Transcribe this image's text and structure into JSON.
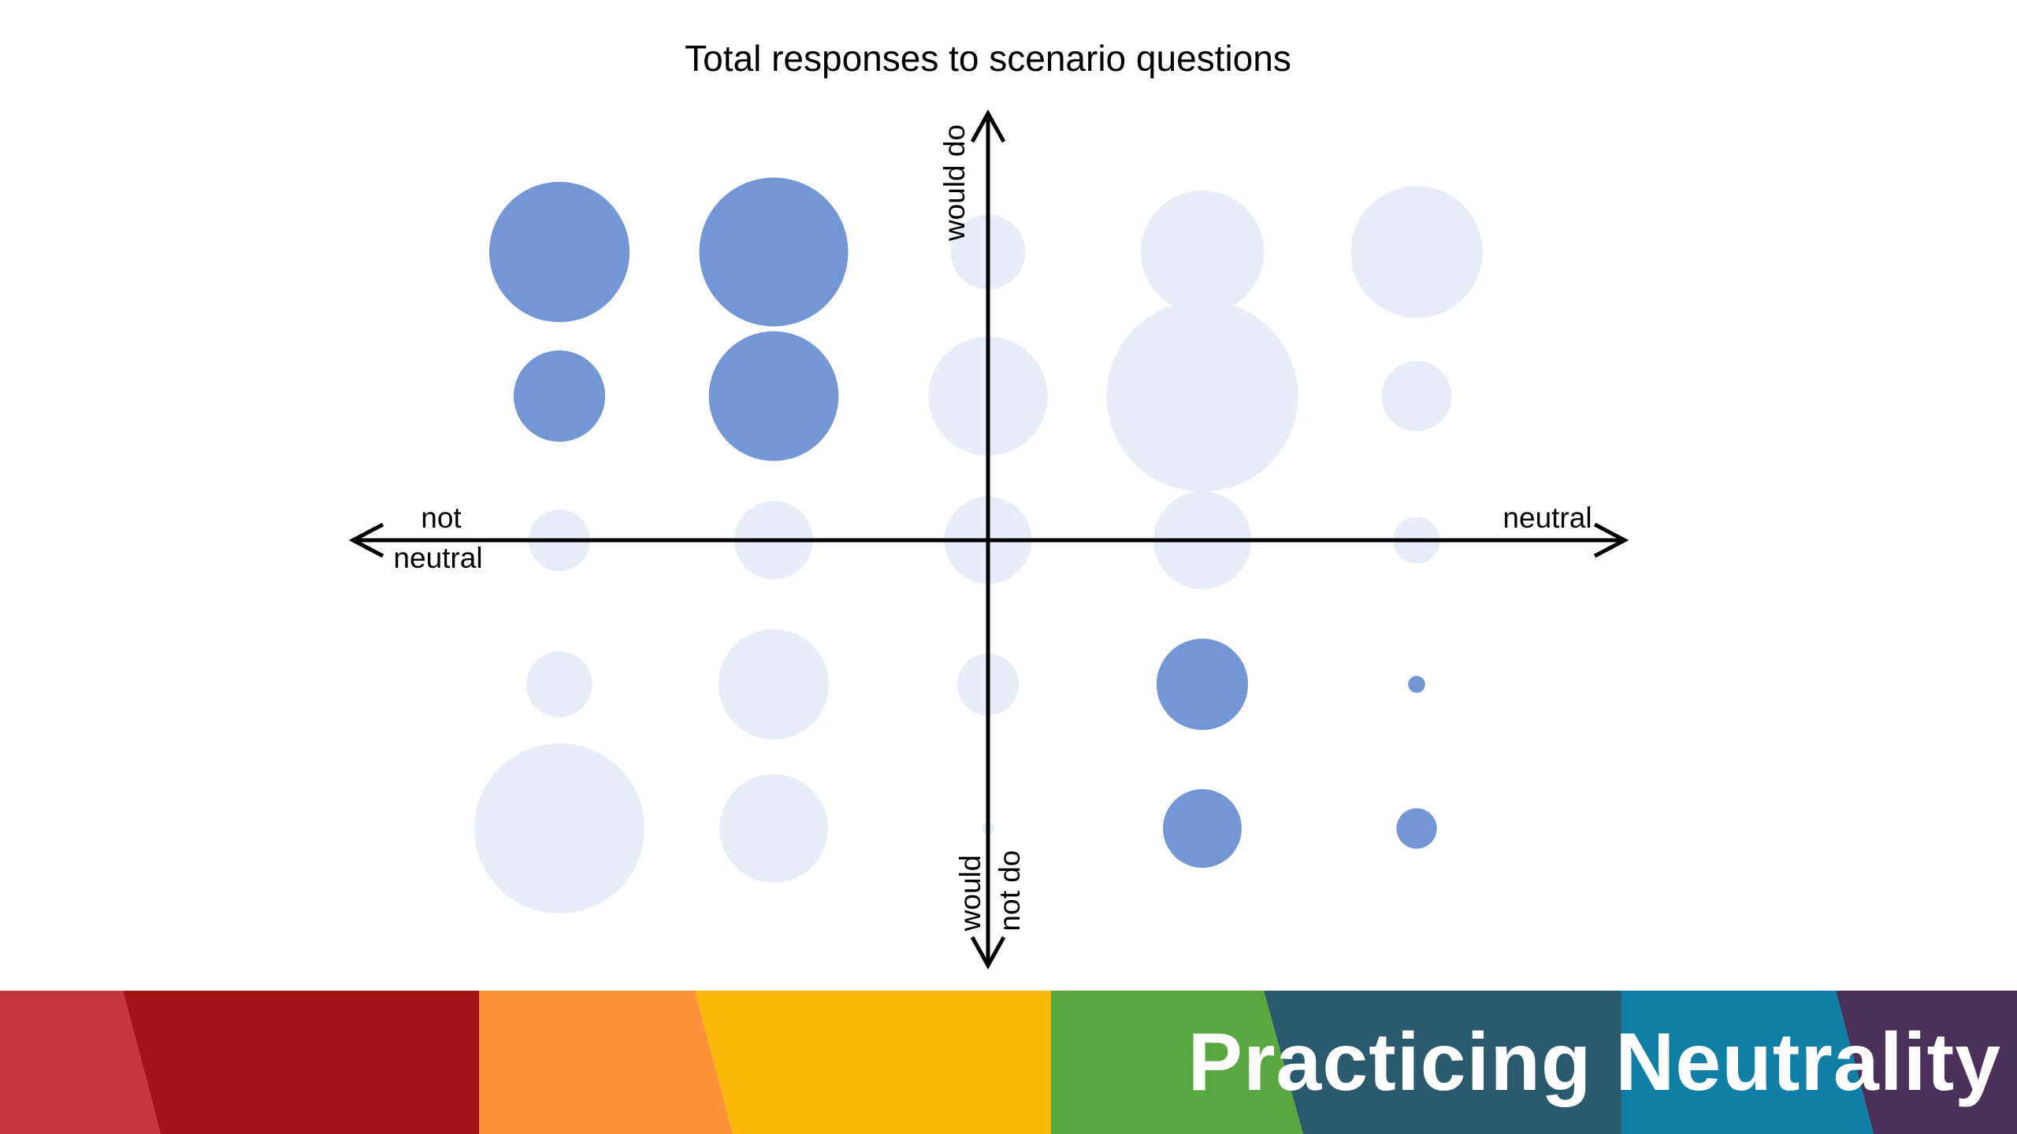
{
  "chart_data": {
    "type": "bubble",
    "title": "Total responses to scenario questions",
    "x_axis": {
      "negative_label": [
        "not",
        "neutral"
      ],
      "positive_label": "neutral"
    },
    "y_axis": {
      "positive_label": "would do",
      "negative_label": [
        "would",
        "not do"
      ]
    },
    "xlim": [
      -2,
      2
    ],
    "ylim": [
      -2,
      2
    ],
    "series": [
      {
        "highlight": true,
        "color": "#7396d4",
        "points": [
          {
            "x": -2,
            "y": 2,
            "size": 66
          },
          {
            "x": -1,
            "y": 2,
            "size": 70
          },
          {
            "x": -2,
            "y": 1,
            "size": 43
          },
          {
            "x": -1,
            "y": 1,
            "size": 61
          },
          {
            "x": 1,
            "y": -1,
            "size": 43
          },
          {
            "x": 2,
            "y": -1,
            "size": 8
          },
          {
            "x": 1,
            "y": -2,
            "size": 37
          },
          {
            "x": 2,
            "y": -2,
            "size": 19
          }
        ]
      },
      {
        "highlight": false,
        "color": "#e8edf7",
        "points": [
          {
            "x": 0,
            "y": 2,
            "size": 35
          },
          {
            "x": 1,
            "y": 2,
            "size": 58
          },
          {
            "x": 2,
            "y": 2,
            "size": 62
          },
          {
            "x": 0,
            "y": 1,
            "size": 56
          },
          {
            "x": 1,
            "y": 1,
            "size": 90
          },
          {
            "x": 2,
            "y": 1,
            "size": 33
          },
          {
            "x": -2,
            "y": 0,
            "size": 29
          },
          {
            "x": -1,
            "y": 0,
            "size": 37
          },
          {
            "x": 0,
            "y": 0,
            "size": 41
          },
          {
            "x": 1,
            "y": 0,
            "size": 46
          },
          {
            "x": 2,
            "y": 0,
            "size": 22
          },
          {
            "x": -2,
            "y": -1,
            "size": 31
          },
          {
            "x": -1,
            "y": -1,
            "size": 52
          },
          {
            "x": 0,
            "y": -1,
            "size": 29
          },
          {
            "x": -2,
            "y": -2,
            "size": 80
          },
          {
            "x": -1,
            "y": -2,
            "size": 51
          },
          {
            "x": 0,
            "y": -2,
            "size": 6
          }
        ]
      }
    ]
  },
  "banner": {
    "title": "Practicing Neutrality",
    "colors": [
      "#c3393b",
      "#a11616",
      "#fd9139",
      "#fcb70b",
      "#58a73f",
      "#2a5a6e",
      "#0f7fa6",
      "#4b3059"
    ]
  }
}
